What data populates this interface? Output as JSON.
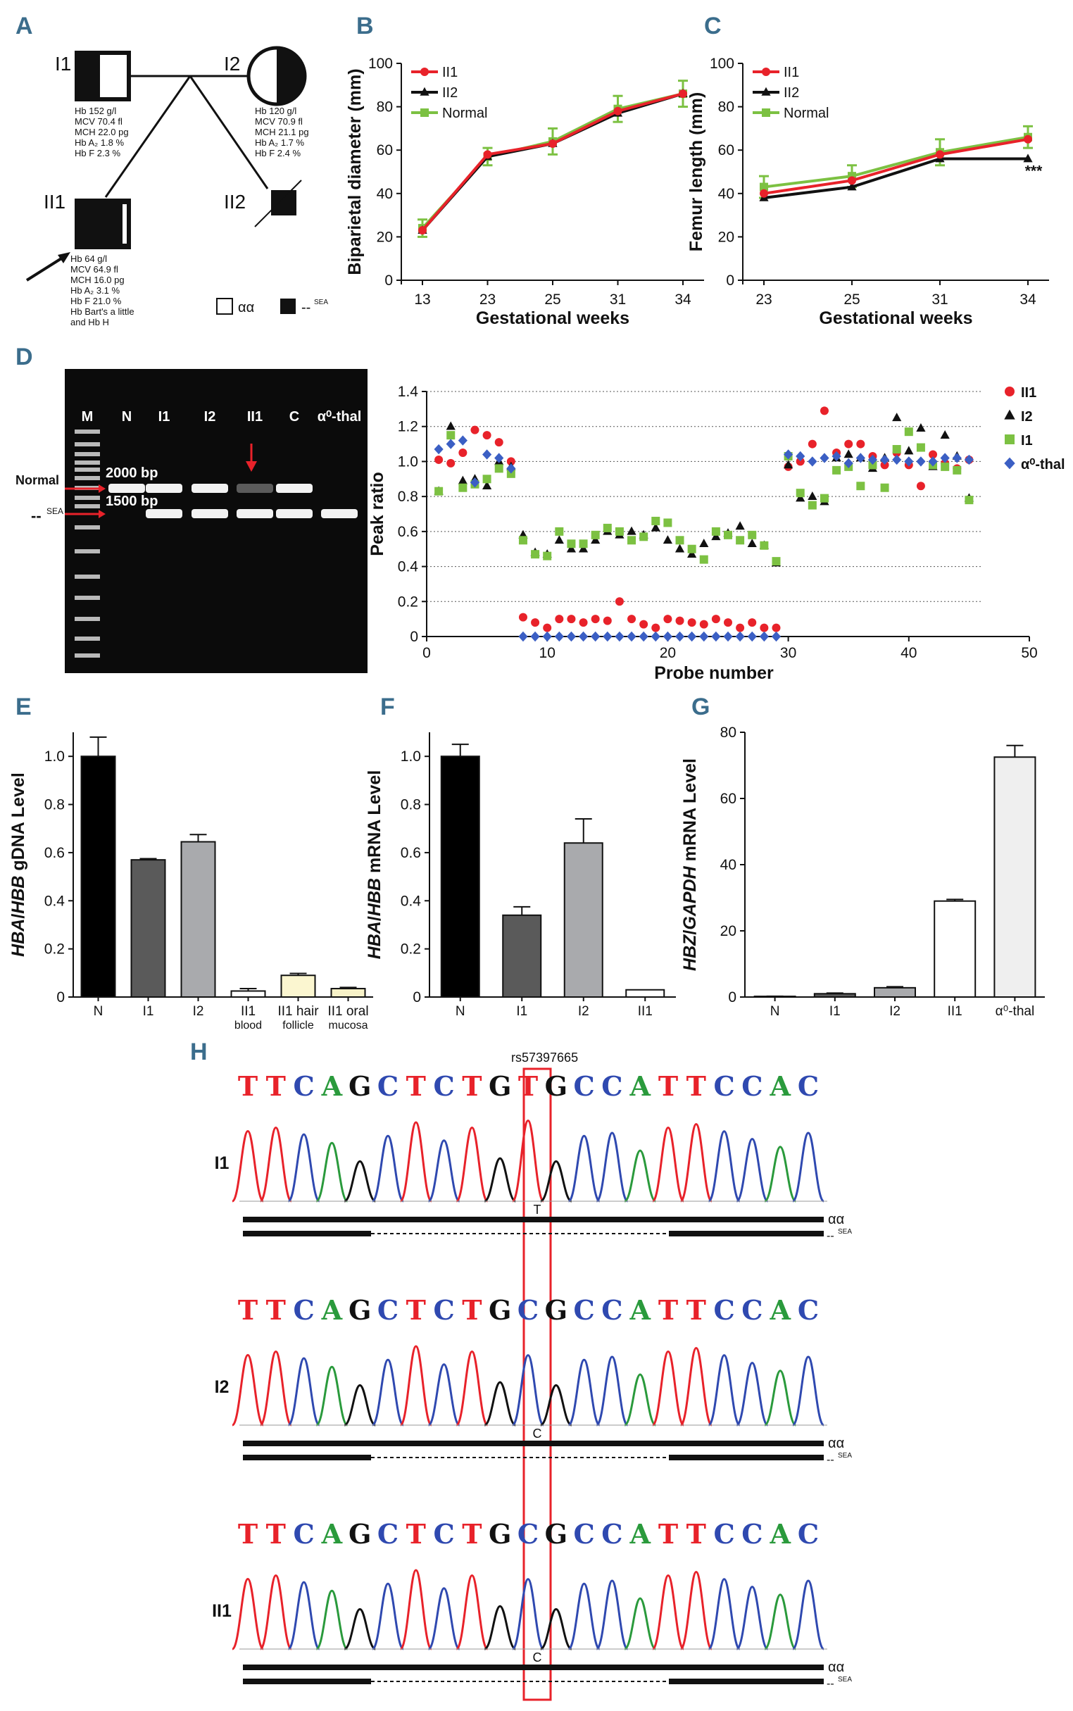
{
  "panel_labels": {
    "a": "A",
    "b": "B",
    "c": "C",
    "d": "D",
    "e": "E",
    "f": "F",
    "g": "G",
    "h": "H"
  },
  "pedigree": {
    "I1": {
      "id": "I1",
      "values": [
        "Hb       152 g/l",
        "MCV    70.4 fl",
        "MCH    22.0 pg",
        "Hb A₂  1.8 %",
        "Hb F     2.3 %"
      ]
    },
    "I2": {
      "id": "I2",
      "values": [
        "Hb       120 g/l",
        "MCV    70.9 fl",
        "MCH    21.1 pg",
        "Hb A₂  1.7 %",
        "Hb F     2.4 %"
      ]
    },
    "II1": {
      "id": "II1",
      "values": [
        "Hb        64 g/l",
        "MCV     64.9 fl",
        "MCH     16.0 pg",
        "Hb A₂   3.1 %",
        "Hb F     21.0 %",
        "Hb Bart's      a little",
        "and Hb H"
      ]
    },
    "II2": {
      "id": "II2"
    },
    "legend_aa": "αα",
    "legend_sea": "--",
    "legend_sea_sup": "SEA"
  },
  "chart_data": [
    {
      "panel": "B",
      "type": "line",
      "title": "",
      "xlabel": "Gestational weeks",
      "ylabel": "Biparietal diameter (mm)",
      "categories": [
        "13",
        "23",
        "25",
        "31",
        "34"
      ],
      "ylim": [
        0,
        100
      ],
      "yticks": [
        "0",
        "20",
        "40",
        "60",
        "80",
        "100"
      ],
      "series": [
        {
          "name": "II1",
          "color": "#e8222a",
          "marker": "circle",
          "values": [
            23,
            58,
            63,
            78,
            86
          ]
        },
        {
          "name": "II2",
          "color": "#111111",
          "marker": "triangle",
          "values": [
            23,
            57,
            63,
            77,
            86
          ]
        },
        {
          "name": "Normal",
          "color": "#7cc142",
          "marker": "square",
          "values": [
            24,
            57,
            64,
            79,
            86
          ]
        }
      ],
      "errors": [
        4,
        4,
        6,
        6,
        6
      ]
    },
    {
      "panel": "C",
      "type": "line",
      "title": "",
      "xlabel": "Gestational weeks",
      "ylabel": "Femur length (mm)",
      "categories": [
        "23",
        "25",
        "31",
        "34"
      ],
      "ylim": [
        0,
        100
      ],
      "yticks": [
        "0",
        "20",
        "40",
        "60",
        "80",
        "100"
      ],
      "series": [
        {
          "name": "II1",
          "color": "#e8222a",
          "marker": "circle",
          "values": [
            40,
            46,
            58,
            65
          ]
        },
        {
          "name": "II2",
          "color": "#111111",
          "marker": "triangle",
          "values": [
            38,
            43,
            56,
            56
          ]
        },
        {
          "name": "Normal",
          "color": "#7cc142",
          "marker": "square",
          "values": [
            43,
            48,
            59,
            66
          ]
        }
      ],
      "errors": [
        5,
        5,
        6,
        5
      ],
      "annotation": "***"
    },
    {
      "panel": "D",
      "type": "scatter",
      "title": "",
      "xlabel": "Probe number",
      "ylabel": "Peak ratio",
      "xlim": [
        0,
        50
      ],
      "ylim": [
        0,
        1.4
      ],
      "xticks": [
        "0",
        "10",
        "20",
        "30",
        "40",
        "50"
      ],
      "yticks": [
        "0",
        "0.2",
        "0.4",
        "0.6",
        "0.8",
        "1.0",
        "1.2",
        "1.4"
      ],
      "series": [
        {
          "name": "II1",
          "color": "#e8222a",
          "marker": "circle",
          "points": [
            [
              1,
              1.01
            ],
            [
              2,
              0.99
            ],
            [
              3,
              1.05
            ],
            [
              4,
              1.18
            ],
            [
              5,
              1.15
            ],
            [
              6,
              1.11
            ],
            [
              7,
              1.0
            ],
            [
              8,
              0.11
            ],
            [
              9,
              0.08
            ],
            [
              10,
              0.05
            ],
            [
              11,
              0.1
            ],
            [
              12,
              0.1
            ],
            [
              13,
              0.08
            ],
            [
              14,
              0.1
            ],
            [
              15,
              0.09
            ],
            [
              16,
              0.2
            ],
            [
              17,
              0.1
            ],
            [
              18,
              0.07
            ],
            [
              19,
              0.05
            ],
            [
              20,
              0.1
            ],
            [
              21,
              0.09
            ],
            [
              22,
              0.08
            ],
            [
              23,
              0.07
            ],
            [
              24,
              0.1
            ],
            [
              25,
              0.08
            ],
            [
              26,
              0.05
            ],
            [
              27,
              0.08
            ],
            [
              28,
              0.05
            ],
            [
              29,
              0.05
            ],
            [
              30,
              0.97
            ],
            [
              31,
              1.0
            ],
            [
              32,
              1.1
            ],
            [
              33,
              1.29
            ],
            [
              34,
              1.05
            ],
            [
              35,
              1.1
            ],
            [
              36,
              1.1
            ],
            [
              37,
              1.03
            ],
            [
              38,
              0.98
            ],
            [
              39,
              1.05
            ],
            [
              40,
              0.98
            ],
            [
              41,
              0.86
            ],
            [
              42,
              1.04
            ],
            [
              43,
              0.99
            ],
            [
              44,
              0.96
            ],
            [
              45,
              1.01
            ]
          ]
        },
        {
          "name": "I2",
          "color": "#111111",
          "marker": "triangle",
          "points": [
            [
              1,
              0.83
            ],
            [
              2,
              1.2
            ],
            [
              3,
              0.89
            ],
            [
              4,
              0.9
            ],
            [
              5,
              0.86
            ],
            [
              6,
              1.0
            ],
            [
              7,
              0.97
            ],
            [
              8,
              0.58
            ],
            [
              9,
              0.48
            ],
            [
              10,
              0.47
            ],
            [
              11,
              0.55
            ],
            [
              12,
              0.5
            ],
            [
              13,
              0.5
            ],
            [
              14,
              0.55
            ],
            [
              15,
              0.6
            ],
            [
              16,
              0.58
            ],
            [
              17,
              0.6
            ],
            [
              18,
              0.58
            ],
            [
              19,
              0.62
            ],
            [
              20,
              0.55
            ],
            [
              21,
              0.5
            ],
            [
              22,
              0.47
            ],
            [
              23,
              0.53
            ],
            [
              24,
              0.57
            ],
            [
              25,
              0.59
            ],
            [
              26,
              0.63
            ],
            [
              27,
              0.53
            ],
            [
              28,
              0.52
            ],
            [
              29,
              0.42
            ],
            [
              30,
              0.98
            ],
            [
              31,
              0.79
            ],
            [
              32,
              0.8
            ],
            [
              33,
              0.77
            ],
            [
              34,
              1.02
            ],
            [
              35,
              1.04
            ],
            [
              36,
              1.02
            ],
            [
              37,
              0.96
            ],
            [
              38,
              1.02
            ],
            [
              39,
              1.25
            ],
            [
              40,
              1.06
            ],
            [
              41,
              1.19
            ],
            [
              42,
              0.97
            ],
            [
              43,
              1.15
            ],
            [
              44,
              1.03
            ],
            [
              45,
              0.79
            ]
          ]
        },
        {
          "name": "I1",
          "color": "#7cc142",
          "marker": "square",
          "points": [
            [
              1,
              0.83
            ],
            [
              2,
              1.15
            ],
            [
              3,
              0.85
            ],
            [
              4,
              0.87
            ],
            [
              5,
              0.9
            ],
            [
              6,
              0.96
            ],
            [
              7,
              0.93
            ],
            [
              8,
              0.55
            ],
            [
              9,
              0.47
            ],
            [
              10,
              0.46
            ],
            [
              11,
              0.6
            ],
            [
              12,
              0.53
            ],
            [
              13,
              0.53
            ],
            [
              14,
              0.58
            ],
            [
              15,
              0.62
            ],
            [
              16,
              0.6
            ],
            [
              17,
              0.55
            ],
            [
              18,
              0.57
            ],
            [
              19,
              0.66
            ],
            [
              20,
              0.65
            ],
            [
              21,
              0.55
            ],
            [
              22,
              0.5
            ],
            [
              23,
              0.44
            ],
            [
              24,
              0.6
            ],
            [
              25,
              0.58
            ],
            [
              26,
              0.55
            ],
            [
              27,
              0.58
            ],
            [
              28,
              0.52
            ],
            [
              29,
              0.43
            ],
            [
              30,
              1.03
            ],
            [
              31,
              0.82
            ],
            [
              32,
              0.75
            ],
            [
              33,
              0.79
            ],
            [
              34,
              0.95
            ],
            [
              35,
              0.97
            ],
            [
              36,
              0.86
            ],
            [
              37,
              0.98
            ],
            [
              38,
              0.85
            ],
            [
              39,
              1.07
            ],
            [
              40,
              1.17
            ],
            [
              41,
              1.08
            ],
            [
              42,
              0.98
            ],
            [
              43,
              0.97
            ],
            [
              44,
              0.95
            ],
            [
              45,
              0.78
            ]
          ]
        },
        {
          "name": "α⁰-thal",
          "color": "#3b5fc4",
          "marker": "diamond",
          "points": [
            [
              1,
              1.07
            ],
            [
              2,
              1.1
            ],
            [
              3,
              1.12
            ],
            [
              4,
              0.88
            ],
            [
              5,
              1.04
            ],
            [
              6,
              1.02
            ],
            [
              7,
              0.96
            ],
            [
              8,
              0
            ],
            [
              9,
              0
            ],
            [
              10,
              0
            ],
            [
              11,
              0
            ],
            [
              12,
              0
            ],
            [
              13,
              0
            ],
            [
              14,
              0
            ],
            [
              15,
              0
            ],
            [
              16,
              0
            ],
            [
              17,
              0
            ],
            [
              18,
              0
            ],
            [
              19,
              0
            ],
            [
              20,
              0
            ],
            [
              21,
              0
            ],
            [
              22,
              0
            ],
            [
              23,
              0
            ],
            [
              24,
              0
            ],
            [
              25,
              0
            ],
            [
              26,
              0
            ],
            [
              27,
              0
            ],
            [
              28,
              0
            ],
            [
              29,
              0
            ],
            [
              30,
              1.04
            ],
            [
              31,
              1.03
            ],
            [
              32,
              1.0
            ],
            [
              33,
              1.02
            ],
            [
              34,
              1.03
            ],
            [
              35,
              0.99
            ],
            [
              36,
              1.02
            ],
            [
              37,
              1.01
            ],
            [
              38,
              1.01
            ],
            [
              39,
              1.01
            ],
            [
              40,
              1.0
            ],
            [
              41,
              1.0
            ],
            [
              42,
              1.0
            ],
            [
              43,
              1.02
            ],
            [
              44,
              1.02
            ],
            [
              45,
              1.01
            ]
          ]
        }
      ]
    },
    {
      "panel": "E",
      "type": "bar",
      "title": "",
      "xlabel": "",
      "ylabel": "HBA/HBB gDNA Level",
      "ylabel_parts": [
        "HBA",
        "/",
        "HBB",
        " gDNA Level"
      ],
      "categories": [
        [
          "N"
        ],
        [
          "I1"
        ],
        [
          "I2"
        ],
        [
          "II1",
          "blood"
        ],
        [
          "II1 hair",
          "follicle"
        ],
        [
          "II1 oral",
          "mucosa"
        ]
      ],
      "values": [
        1.0,
        0.57,
        0.645,
        0.025,
        0.09,
        0.035
      ],
      "errors": [
        0.08,
        0.005,
        0.03,
        0.01,
        0.008,
        0.005
      ],
      "colors": [
        "#000000",
        "#5a5a5a",
        "#a9aaad",
        "#ffffff",
        "#fbf6d0",
        "#f7f2c8"
      ],
      "ylim": [
        0,
        1.1
      ],
      "yticks": [
        "0",
        "0.2",
        "0.4",
        "0.6",
        "0.8",
        "1.0"
      ]
    },
    {
      "panel": "F",
      "type": "bar",
      "title": "",
      "xlabel": "",
      "ylabel": "HBA/HBB mRNA Level",
      "ylabel_parts": [
        "HBA",
        "/",
        "HBB",
        " mRNA Level"
      ],
      "categories": [
        [
          "N"
        ],
        [
          "I1"
        ],
        [
          "I2"
        ],
        [
          "II1"
        ]
      ],
      "values": [
        1.0,
        0.34,
        0.64,
        0.03
      ],
      "errors": [
        0.05,
        0.035,
        0.1,
        0.0
      ],
      "colors": [
        "#000000",
        "#5a5a5a",
        "#a9aaad",
        "#ffffff"
      ],
      "ylim": [
        0,
        1.1
      ],
      "yticks": [
        "0",
        "0.2",
        "0.4",
        "0.6",
        "0.8",
        "1.0"
      ]
    },
    {
      "panel": "G",
      "type": "bar",
      "title": "",
      "xlabel": "",
      "ylabel": "HBZ/GAPDH mRNA Level",
      "ylabel_parts": [
        "HBZ",
        "/",
        "GAPDH",
        " mRNA Level"
      ],
      "categories": [
        [
          "N"
        ],
        [
          "I1"
        ],
        [
          "I2"
        ],
        [
          "II1"
        ],
        [
          "α⁰-thal"
        ]
      ],
      "values": [
        0.2,
        1.0,
        2.8,
        29.0,
        72.5
      ],
      "errors": [
        0.05,
        0.2,
        0.3,
        0.5,
        3.5
      ],
      "colors": [
        "#000000",
        "#5a5a5a",
        "#a9aaad",
        "#ffffff",
        "#efefef"
      ],
      "ylim": [
        0,
        80
      ],
      "yticks": [
        "0",
        "20",
        "40",
        "60",
        "80"
      ]
    }
  ],
  "gel": {
    "lanes": [
      "M",
      "N",
      "I1",
      "I2",
      "II1",
      "C",
      "α⁰-thal"
    ],
    "size_2000": "2000 bp",
    "size_1500": "1500 bp",
    "label_normal": "Normal",
    "label_sea": "--",
    "label_sea_sup": "SEA"
  },
  "legend_D": [
    "II1",
    "I2",
    "I1",
    "α⁰-thal"
  ],
  "sequencing": {
    "rsid": "rs57397665",
    "tracks": [
      {
        "label": "I1",
        "sequence": "TTCAGCTCTGTGCCATTCCAC",
        "call": "T"
      },
      {
        "label": "I2",
        "sequence": "TTCAGCTCTGCGCCATTCCAC",
        "call": "C"
      },
      {
        "label": "II1",
        "sequence": "TTCAGCTCTGCGCCATTCCAC",
        "call": "C"
      }
    ],
    "allele_aa": "αα",
    "allele_sea": "--",
    "allele_sea_sup": "SEA"
  },
  "colors": {
    "red": "#e8222a",
    "black": "#111111",
    "green": "#7cc142",
    "blue": "#3b5fc4",
    "panel_label": "#3b6d8c"
  }
}
